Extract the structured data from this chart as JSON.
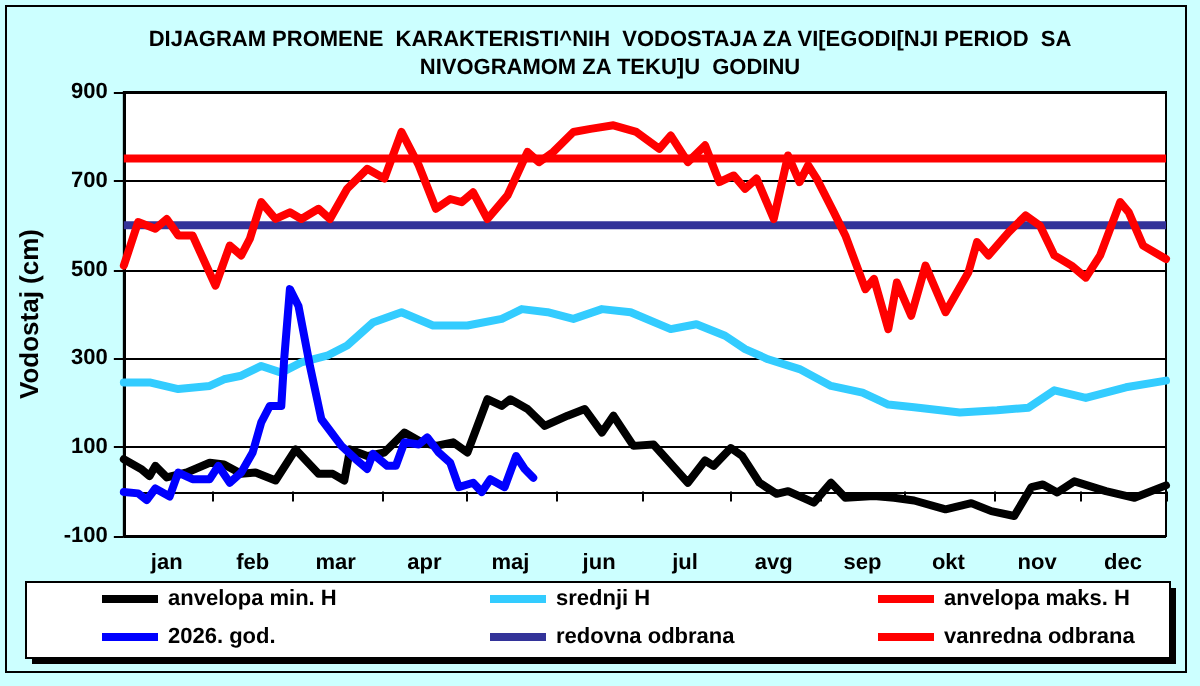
{
  "chart_data": {
    "type": "line",
    "title": "DIJAGRAM PROMENE  KARAKTERISTI^NIH  VODOSTAJA ZA VI[EGODI[NJI PERIOD  SA\nNIVOGRAMOM ZA TEKU]U  GODINU",
    "ylabel": "Vodostaj (cm)",
    "xlim": [
      "--01-01",
      "--12-31"
    ],
    "xticks": [
      {
        "value": "--01-01",
        "label": null
      },
      {
        "value": "--01-16",
        "label": "jan"
      },
      {
        "value": "--02-01",
        "label": null
      },
      {
        "value": "--02-15",
        "label": "feb"
      },
      {
        "value": "--03-01",
        "label": null
      },
      {
        "value": "--03-16",
        "label": "mar"
      },
      {
        "value": "--04-01",
        "label": null
      },
      {
        "value": "--04-16",
        "label": "apr"
      },
      {
        "value": "--05-01",
        "label": null
      },
      {
        "value": "--05-16",
        "label": "maj"
      },
      {
        "value": "--06-01",
        "label": null
      },
      {
        "value": "--06-16",
        "label": "jun"
      },
      {
        "value": "--07-01",
        "label": null
      },
      {
        "value": "--07-16",
        "label": "jul"
      },
      {
        "value": "--08-01",
        "label": null
      },
      {
        "value": "--08-16",
        "label": "avg"
      },
      {
        "value": "--09-01",
        "label": null
      },
      {
        "value": "--09-16",
        "label": "sep"
      },
      {
        "value": "--10-01",
        "label": null
      },
      {
        "value": "--10-16",
        "label": "okt"
      },
      {
        "value": "--11-01",
        "label": null
      },
      {
        "value": "--11-16",
        "label": "nov"
      },
      {
        "value": "--12-01",
        "label": null
      },
      {
        "value": "--12-16",
        "label": "dec"
      },
      {
        "value": "--12-31",
        "label": null
      }
    ],
    "ylim": [
      -100,
      900
    ],
    "yticks": [
      -100,
      100,
      300,
      500,
      700,
      900
    ],
    "grid": "y",
    "legend": "bottom",
    "marker": "none",
    "line_style": "solid",
    "series": [
      {
        "name": "anvelopa min. H",
        "color": "#000000",
        "x": [
          "--01-01",
          "--01-07",
          "--01-10",
          "--01-12",
          "--01-16",
          "--01-23",
          "--01-31",
          "--02-05",
          "--02-11",
          "--02-16",
          "--02-23",
          "--03-02",
          "--03-10",
          "--03-15",
          "--03-19",
          "--03-21",
          "--03-27",
          "--04-02",
          "--04-09",
          "--04-15",
          "--04-20",
          "--04-26",
          "--05-01",
          "--05-08",
          "--05-13",
          "--05-16",
          "--05-22",
          "--05-28",
          "--06-05",
          "--06-11",
          "--06-17",
          "--06-21",
          "--06-28",
          "--07-05",
          "--07-17",
          "--07-23",
          "--07-26",
          "--08-01",
          "--08-05",
          "--08-11",
          "--08-17",
          "--08-21",
          "--08-30",
          "--09-05",
          "--09-10",
          "--09-20",
          "--09-27",
          "--10-04",
          "--10-15",
          "--10-24",
          "--10-31",
          "--11-08",
          "--11-14",
          "--11-18",
          "--11-23",
          "--11-29",
          "--12-10",
          "--12-20",
          "--12-31"
        ],
        "values": [
          73,
          51,
          35,
          58,
          32,
          43,
          65,
          61,
          40,
          43,
          25,
          95,
          40,
          40,
          25,
          95,
          80,
          88,
          133,
          111,
          103,
          111,
          88,
          208,
          193,
          208,
          186,
          148,
          171,
          186,
          133,
          171,
          103,
          106,
          20,
          70,
          58,
          98,
          80,
          20,
          -5,
          1,
          -25,
          20,
          -14,
          -10,
          -14,
          -20,
          -40,
          -26,
          -44,
          -55,
          10,
          16,
          -2,
          23,
          1,
          -14,
          14
        ]
      },
      {
        "name": "srednji H",
        "color": "#33ccff",
        "x": [
          "--01-01",
          "--01-10",
          "--01-20",
          "--01-31",
          "--02-05",
          "--02-11",
          "--02-18",
          "--02-25",
          "--03-04",
          "--03-13",
          "--03-20",
          "--03-29",
          "--04-08",
          "--04-19",
          "--05-01",
          "--05-13",
          "--05-20",
          "--05-29",
          "--06-07",
          "--06-17",
          "--06-27",
          "--07-11",
          "--07-20",
          "--07-30",
          "--08-06",
          "--08-14",
          "--08-25",
          "--09-05",
          "--09-16",
          "--09-25",
          "--10-04",
          "--10-20",
          "--11-02",
          "--11-13",
          "--11-22",
          "--12-03",
          "--12-17",
          "--12-31"
        ],
        "values": [
          246,
          246,
          231,
          238,
          253,
          261,
          283,
          268,
          291,
          306,
          329,
          381,
          404,
          374,
          374,
          389,
          411,
          404,
          389,
          411,
          404,
          366,
          377,
          351,
          321,
          298,
          276,
          238,
          223,
          196,
          190,
          178,
          183,
          189,
          228,
          211,
          235,
          250
        ]
      },
      {
        "name": "anvelopa maks. H",
        "color": "#ff0000",
        "x": [
          "--01-01",
          "--01-06",
          "--01-12",
          "--01-16",
          "--01-20",
          "--01-25",
          "--02-02",
          "--02-07",
          "--02-11",
          "--02-14",
          "--02-18",
          "--02-23",
          "--02-28",
          "--03-04",
          "--03-10",
          "--03-14",
          "--03-20",
          "--03-27",
          "--04-02",
          "--04-08",
          "--04-14",
          "--04-20",
          "--04-25",
          "--04-29",
          "--05-03",
          "--05-08",
          "--05-15",
          "--05-22",
          "--05-26",
          "--05-31",
          "--06-07",
          "--06-13",
          "--06-21",
          "--06-29",
          "--07-07",
          "--07-11",
          "--07-17",
          "--07-23",
          "--07-28",
          "--08-02",
          "--08-06",
          "--08-10",
          "--08-16",
          "--08-21",
          "--08-25",
          "--08-28",
          "--08-31",
          "--09-06",
          "--09-10",
          "--09-17",
          "--09-20",
          "--09-25",
          "--09-28",
          "--10-03",
          "--10-08",
          "--10-15",
          "--10-23",
          "--10-26",
          "--10-30",
          "--11-06",
          "--11-12",
          "--11-17",
          "--11-22",
          "--11-28",
          "--12-03",
          "--12-08",
          "--12-15",
          "--12-18",
          "--12-23",
          "--12-31"
        ],
        "values": [
          509,
          607,
          592,
          614,
          577,
          577,
          464,
          554,
          532,
          569,
          652,
          614,
          629,
          614,
          637,
          614,
          682,
          727,
          705,
          810,
          735,
          637,
          659,
          652,
          674,
          614,
          667,
          765,
          742,
          765,
          810,
          817,
          825,
          810,
          772,
          802,
          742,
          780,
          697,
          712,
          682,
          705,
          614,
          757,
          697,
          735,
          705,
          629,
          577,
          456,
          479,
          366,
          471,
          396,
          509,
          404,
          494,
          562,
          532,
          584,
          622,
          599,
          532,
          509,
          482,
          532,
          652,
          629,
          554,
          524
        ]
      },
      {
        "name": "2026. god.",
        "color": "#0000ff",
        "x": [
          "--01-01",
          "--01-06",
          "--01-09",
          "--01-12",
          "--01-17",
          "--01-20",
          "--01-25",
          "--01-31",
          "--02-03",
          "--02-07",
          "--02-11",
          "--02-15",
          "--02-18",
          "--02-21",
          "--02-25",
          "--02-26",
          "--02-28",
          "--03-03",
          "--03-07",
          "--03-11",
          "--03-18",
          "--03-23",
          "--03-27",
          "--03-29",
          "--04-03",
          "--04-06",
          "--04-09",
          "--04-14",
          "--04-17",
          "--04-21",
          "--04-25",
          "--04-28",
          "--05-03",
          "--05-06",
          "--05-09",
          "--05-14",
          "--05-18",
          "--05-21",
          "--05-24"
        ],
        "values": [
          -1,
          -4,
          -19,
          7,
          -11,
          43,
          28,
          28,
          58,
          20,
          43,
          88,
          156,
          193,
          193,
          298,
          456,
          418,
          283,
          163,
          103,
          73,
          51,
          85,
          58,
          58,
          111,
          106,
          122,
          88,
          65,
          10,
          20,
          -1,
          28,
          10,
          80,
          51,
          31
        ]
      }
    ],
    "ref_lines": [
      {
        "axis": "y",
        "value": 600,
        "label": "redovna odbrana",
        "color": "#333399"
      },
      {
        "axis": "y",
        "value": 750,
        "label": "vanredna odbrana",
        "color": "#ff0000"
      }
    ]
  }
}
